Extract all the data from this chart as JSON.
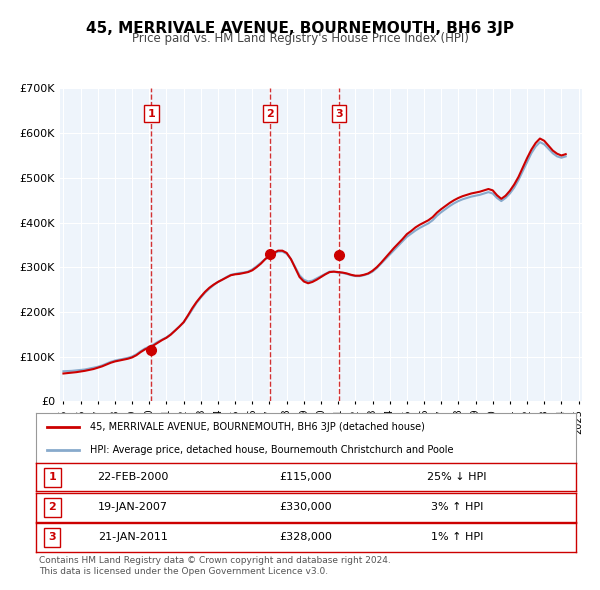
{
  "title": "45, MERRIVALE AVENUE, BOURNEMOUTH, BH6 3JP",
  "subtitle": "Price paid vs. HM Land Registry's House Price Index (HPI)",
  "hpi_label": "HPI: Average price, detached house, Bournemouth Christchurch and Poole",
  "property_label": "45, MERRIVALE AVENUE, BOURNEMOUTH, BH6 3JP (detached house)",
  "ylabel": "",
  "ylim": [
    0,
    700000
  ],
  "yticks": [
    0,
    100000,
    200000,
    300000,
    400000,
    500000,
    600000,
    700000
  ],
  "ytick_labels": [
    "£0",
    "£100K",
    "£200K",
    "£300K",
    "£400K",
    "£500K",
    "£600K",
    "£700K"
  ],
  "sale_color": "#cc0000",
  "hpi_color": "#aaccee",
  "hpi_line_color": "#88aacc",
  "bg_color": "#eef4fb",
  "plot_bg": "#eef4fb",
  "grid_color": "#ffffff",
  "sale_dates": [
    "2000-02-22",
    "2007-01-19",
    "2011-01-21"
  ],
  "sale_prices": [
    115000,
    330000,
    328000
  ],
  "sale_labels": [
    "1",
    "2",
    "3"
  ],
  "sale_pct": [
    "25% ↓ HPI",
    "3% ↑ HPI",
    "1% ↑ HPI"
  ],
  "sale_dates_str": [
    "22-FEB-2000",
    "19-JAN-2007",
    "21-JAN-2011"
  ],
  "sale_prices_str": [
    "£115,000",
    "£330,000",
    "£328,000"
  ],
  "vline_color": "#cc0000",
  "footer": "Contains HM Land Registry data © Crown copyright and database right 2024.\nThis data is licensed under the Open Government Licence v3.0.",
  "hpi_data": {
    "years": [
      1995.0,
      1995.25,
      1995.5,
      1995.75,
      1996.0,
      1996.25,
      1996.5,
      1996.75,
      1997.0,
      1997.25,
      1997.5,
      1997.75,
      1998.0,
      1998.25,
      1998.5,
      1998.75,
      1999.0,
      1999.25,
      1999.5,
      1999.75,
      2000.0,
      2000.25,
      2000.5,
      2000.75,
      2001.0,
      2001.25,
      2001.5,
      2001.75,
      2002.0,
      2002.25,
      2002.5,
      2002.75,
      2003.0,
      2003.25,
      2003.5,
      2003.75,
      2004.0,
      2004.25,
      2004.5,
      2004.75,
      2005.0,
      2005.25,
      2005.5,
      2005.75,
      2006.0,
      2006.25,
      2006.5,
      2006.75,
      2007.0,
      2007.25,
      2007.5,
      2007.75,
      2008.0,
      2008.25,
      2008.5,
      2008.75,
      2009.0,
      2009.25,
      2009.5,
      2009.75,
      2010.0,
      2010.25,
      2010.5,
      2010.75,
      2011.0,
      2011.25,
      2011.5,
      2011.75,
      2012.0,
      2012.25,
      2012.5,
      2012.75,
      2013.0,
      2013.25,
      2013.5,
      2013.75,
      2014.0,
      2014.25,
      2014.5,
      2014.75,
      2015.0,
      2015.25,
      2015.5,
      2015.75,
      2016.0,
      2016.25,
      2016.5,
      2016.75,
      2017.0,
      2017.25,
      2017.5,
      2017.75,
      2018.0,
      2018.25,
      2018.5,
      2018.75,
      2019.0,
      2019.25,
      2019.5,
      2019.75,
      2020.0,
      2020.25,
      2020.5,
      2020.75,
      2021.0,
      2021.25,
      2021.5,
      2021.75,
      2022.0,
      2022.25,
      2022.5,
      2022.75,
      2023.0,
      2023.25,
      2023.5,
      2023.75,
      2024.0,
      2024.25
    ],
    "values": [
      67000,
      67500,
      68000,
      69000,
      70000,
      71000,
      73000,
      75000,
      77000,
      80000,
      84000,
      88000,
      91000,
      93000,
      95000,
      97000,
      100000,
      105000,
      112000,
      118000,
      122000,
      127000,
      133000,
      138000,
      143000,
      150000,
      158000,
      167000,
      176000,
      190000,
      205000,
      220000,
      232000,
      243000,
      252000,
      260000,
      267000,
      272000,
      278000,
      283000,
      285000,
      287000,
      288000,
      290000,
      295000,
      302000,
      310000,
      318000,
      325000,
      330000,
      335000,
      335000,
      330000,
      318000,
      300000,
      282000,
      272000,
      268000,
      270000,
      275000,
      280000,
      285000,
      290000,
      290000,
      288000,
      287000,
      285000,
      282000,
      280000,
      280000,
      282000,
      285000,
      290000,
      298000,
      308000,
      318000,
      328000,
      338000,
      348000,
      358000,
      368000,
      375000,
      382000,
      388000,
      393000,
      398000,
      405000,
      415000,
      423000,
      430000,
      437000,
      443000,
      448000,
      452000,
      455000,
      458000,
      460000,
      462000,
      465000,
      468000,
      465000,
      455000,
      448000,
      455000,
      465000,
      478000,
      495000,
      515000,
      535000,
      555000,
      570000,
      580000,
      575000,
      565000,
      555000,
      548000,
      545000,
      548000
    ]
  },
  "property_hpi_data": {
    "years": [
      1995.0,
      1995.25,
      1995.5,
      1995.75,
      1996.0,
      1996.25,
      1996.5,
      1996.75,
      1997.0,
      1997.25,
      1997.5,
      1997.75,
      1998.0,
      1998.25,
      1998.5,
      1998.75,
      1999.0,
      1999.25,
      1999.5,
      1999.75,
      2000.0,
      2000.25,
      2000.5,
      2000.75,
      2001.0,
      2001.25,
      2001.5,
      2001.75,
      2002.0,
      2002.25,
      2002.5,
      2002.75,
      2003.0,
      2003.25,
      2003.5,
      2003.75,
      2004.0,
      2004.25,
      2004.5,
      2004.75,
      2005.0,
      2005.25,
      2005.5,
      2005.75,
      2006.0,
      2006.25,
      2006.5,
      2006.75,
      2007.0,
      2007.25,
      2007.5,
      2007.75,
      2008.0,
      2008.25,
      2008.5,
      2008.75,
      2009.0,
      2009.25,
      2009.5,
      2009.75,
      2010.0,
      2010.25,
      2010.5,
      2010.75,
      2011.0,
      2011.25,
      2011.5,
      2011.75,
      2012.0,
      2012.25,
      2012.5,
      2012.75,
      2013.0,
      2013.25,
      2013.5,
      2013.75,
      2014.0,
      2014.25,
      2014.5,
      2014.75,
      2015.0,
      2015.25,
      2015.5,
      2015.75,
      2016.0,
      2016.25,
      2016.5,
      2016.75,
      2017.0,
      2017.25,
      2017.5,
      2017.75,
      2018.0,
      2018.25,
      2018.5,
      2018.75,
      2019.0,
      2019.25,
      2019.5,
      2019.75,
      2020.0,
      2020.25,
      2020.5,
      2020.75,
      2021.0,
      2021.25,
      2021.5,
      2021.75,
      2022.0,
      2022.25,
      2022.5,
      2022.75,
      2023.0,
      2023.25,
      2023.5,
      2023.75,
      2024.0,
      2024.25
    ],
    "values": [
      62000,
      63000,
      64000,
      65000,
      66500,
      68000,
      70000,
      72000,
      75000,
      78000,
      82000,
      86000,
      89000,
      91000,
      93000,
      95000,
      98000,
      103000,
      110000,
      116000,
      120000,
      125000,
      131000,
      137000,
      142000,
      149000,
      158000,
      167000,
      177000,
      192000,
      208000,
      222000,
      234000,
      245000,
      254000,
      261000,
      267000,
      272000,
      277000,
      282000,
      284000,
      285000,
      287000,
      289000,
      293000,
      300000,
      308000,
      318000,
      326000,
      332000,
      337000,
      337000,
      332000,
      318000,
      298000,
      278000,
      268000,
      264000,
      267000,
      272000,
      278000,
      284000,
      289000,
      290000,
      289000,
      288000,
      286000,
      283000,
      281000,
      281000,
      283000,
      286000,
      292000,
      300000,
      310000,
      321000,
      332000,
      343000,
      353000,
      363000,
      374000,
      381000,
      389000,
      395000,
      400000,
      405000,
      412000,
      422000,
      430000,
      437000,
      444000,
      450000,
      455000,
      459000,
      462000,
      465000,
      467000,
      469000,
      472000,
      475000,
      472000,
      461000,
      453000,
      460000,
      471000,
      485000,
      502000,
      523000,
      544000,
      563000,
      578000,
      588000,
      583000,
      572000,
      561000,
      554000,
      550000,
      553000
    ]
  }
}
